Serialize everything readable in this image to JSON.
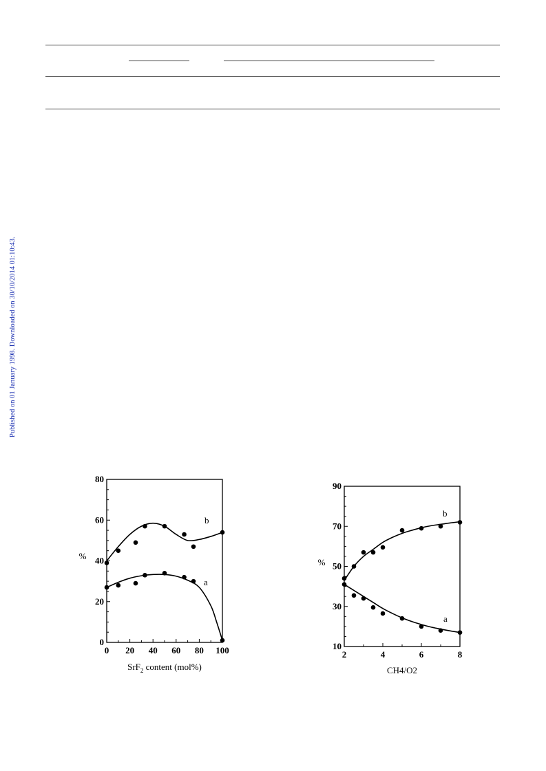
{
  "sidebar": {
    "text": "Published on 01 January 1998. Downloaded on 30/10/2014 01:10:43.",
    "color": "#1a2fb0"
  },
  "chart_data": [
    {
      "type": "scatter",
      "title": "",
      "xlabel_main": "SrF",
      "xlabel_sub": "2",
      "xlabel_rest": " content (mol%)",
      "ylabel": "%",
      "xlim": [
        0,
        100
      ],
      "ylim": [
        0,
        80
      ],
      "xticks": [
        0,
        20,
        40,
        60,
        80,
        100
      ],
      "yticks": [
        0,
        20,
        40,
        60,
        80
      ],
      "grid": false,
      "series": [
        {
          "name": "b",
          "points": [
            [
              0,
              39
            ],
            [
              10,
              45
            ],
            [
              25,
              49
            ],
            [
              33,
              57
            ],
            [
              50,
              57
            ],
            [
              67,
              53
            ],
            [
              75,
              47
            ],
            [
              100,
              54
            ]
          ],
          "curve": [
            [
              0,
              40
            ],
            [
              10,
              47
            ],
            [
              20,
              53
            ],
            [
              30,
              57
            ],
            [
              40,
              58.5
            ],
            [
              50,
              57
            ],
            [
              60,
              53
            ],
            [
              70,
              50
            ],
            [
              80,
              50.5
            ],
            [
              90,
              52
            ],
            [
              100,
              54
            ]
          ]
        },
        {
          "name": "a",
          "points": [
            [
              0,
              27
            ],
            [
              10,
              28
            ],
            [
              25,
              29
            ],
            [
              33,
              33
            ],
            [
              50,
              34
            ],
            [
              67,
              32
            ],
            [
              75,
              30
            ],
            [
              100,
              1
            ]
          ],
          "curve": [
            [
              0,
              27
            ],
            [
              10,
              29.5
            ],
            [
              20,
              31.5
            ],
            [
              30,
              32.7
            ],
            [
              40,
              33.3
            ],
            [
              50,
              33.3
            ],
            [
              60,
              32.5
            ],
            [
              70,
              30.5
            ],
            [
              80,
              27
            ],
            [
              90,
              18
            ],
            [
              95,
              10
            ],
            [
              100,
              1
            ]
          ]
        }
      ]
    },
    {
      "type": "scatter",
      "title": "",
      "xlabel": "CH4/O2",
      "ylabel": "%",
      "xlim": [
        2,
        8
      ],
      "ylim": [
        10,
        90
      ],
      "xticks": [
        2,
        4,
        6,
        8
      ],
      "yticks": [
        10,
        30,
        50,
        70,
        90
      ],
      "grid": false,
      "series": [
        {
          "name": "b",
          "points": [
            [
              2,
              44
            ],
            [
              2.5,
              50
            ],
            [
              3,
              57
            ],
            [
              3.5,
              57
            ],
            [
              4,
              59.5
            ],
            [
              5,
              68
            ],
            [
              6,
              69
            ],
            [
              7,
              70
            ],
            [
              8,
              72
            ]
          ],
          "curve": [
            [
              2,
              43
            ],
            [
              2.5,
              50
            ],
            [
              3,
              55
            ],
            [
              3.5,
              58.5
            ],
            [
              4,
              62
            ],
            [
              4.5,
              64.5
            ],
            [
              5,
              66.5
            ],
            [
              5.5,
              68
            ],
            [
              6,
              69.3
            ],
            [
              6.5,
              70.3
            ],
            [
              7,
              71
            ],
            [
              7.5,
              71.7
            ],
            [
              8,
              72.3
            ]
          ]
        },
        {
          "name": "a",
          "points": [
            [
              2,
              41
            ],
            [
              2.5,
              35.5
            ],
            [
              3,
              34
            ],
            [
              3.5,
              29.5
            ],
            [
              4,
              26.5
            ],
            [
              5,
              24
            ],
            [
              6,
              20
            ],
            [
              7,
              18
            ],
            [
              8,
              17
            ]
          ],
          "curve": [
            [
              2,
              41
            ],
            [
              2.5,
              38
            ],
            [
              3,
              35
            ],
            [
              3.5,
              32
            ],
            [
              4,
              29
            ],
            [
              4.5,
              26.5
            ],
            [
              5,
              24.3
            ],
            [
              5.5,
              22.5
            ],
            [
              6,
              21
            ],
            [
              6.5,
              19.7
            ],
            [
              7,
              18.7
            ],
            [
              7.5,
              17.8
            ],
            [
              8,
              17
            ]
          ]
        }
      ]
    }
  ]
}
